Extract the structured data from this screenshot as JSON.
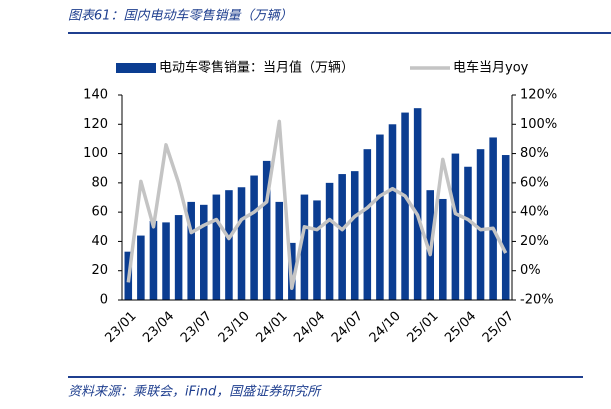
{
  "chart_data": {
    "type": "bar_line",
    "title": "图表61：国内电动车零售销量（万辆）",
    "source": "资料来源：乘联会，iFind，国盛证券研究所",
    "categories": [
      "23/01",
      null,
      null,
      "23/04",
      null,
      null,
      "23/07",
      null,
      null,
      "23/10",
      null,
      null,
      "24/01",
      null,
      null,
      "24/04",
      null,
      null,
      "24/07",
      null,
      null,
      "24/10",
      null,
      null,
      "25/01",
      null,
      null,
      "25/04",
      null,
      null,
      "25/07"
    ],
    "series": [
      {
        "name": "电动车零售销量：当月值（万辆）",
        "type": "bar",
        "color": "#0b3d91",
        "values": [
          33,
          44,
          54,
          53,
          58,
          67,
          65,
          72,
          75,
          77,
          85,
          95,
          67,
          39,
          72,
          68,
          80,
          86,
          88,
          103,
          113,
          120,
          128,
          131,
          75,
          69,
          100,
          91,
          103,
          111,
          99
        ]
      },
      {
        "name": "电车当月yoy",
        "type": "line",
        "axis": "y2",
        "color": "#c4c4c4",
        "values": [
          -8,
          61,
          30,
          86,
          60,
          26,
          31,
          35,
          22,
          35,
          40,
          47,
          102,
          -12,
          30,
          28,
          35,
          28,
          37,
          43,
          51,
          56,
          51,
          38,
          11,
          76,
          39,
          35,
          28,
          29,
          12
        ]
      }
    ],
    "ylim": [
      0,
      140
    ],
    "yticks": [
      0,
      20,
      40,
      60,
      80,
      100,
      120,
      140
    ],
    "y2lim": [
      -20,
      120
    ],
    "y2ticks": [
      {
        "value": -20,
        "label": "-20%"
      },
      {
        "value": 0,
        "label": "0%"
      },
      {
        "value": 20,
        "label": "20%"
      },
      {
        "value": 40,
        "label": "40%"
      },
      {
        "value": 60,
        "label": "60%"
      },
      {
        "value": 80,
        "label": "80%"
      },
      {
        "value": 100,
        "label": "100%"
      },
      {
        "value": 120,
        "label": "120%"
      }
    ]
  }
}
